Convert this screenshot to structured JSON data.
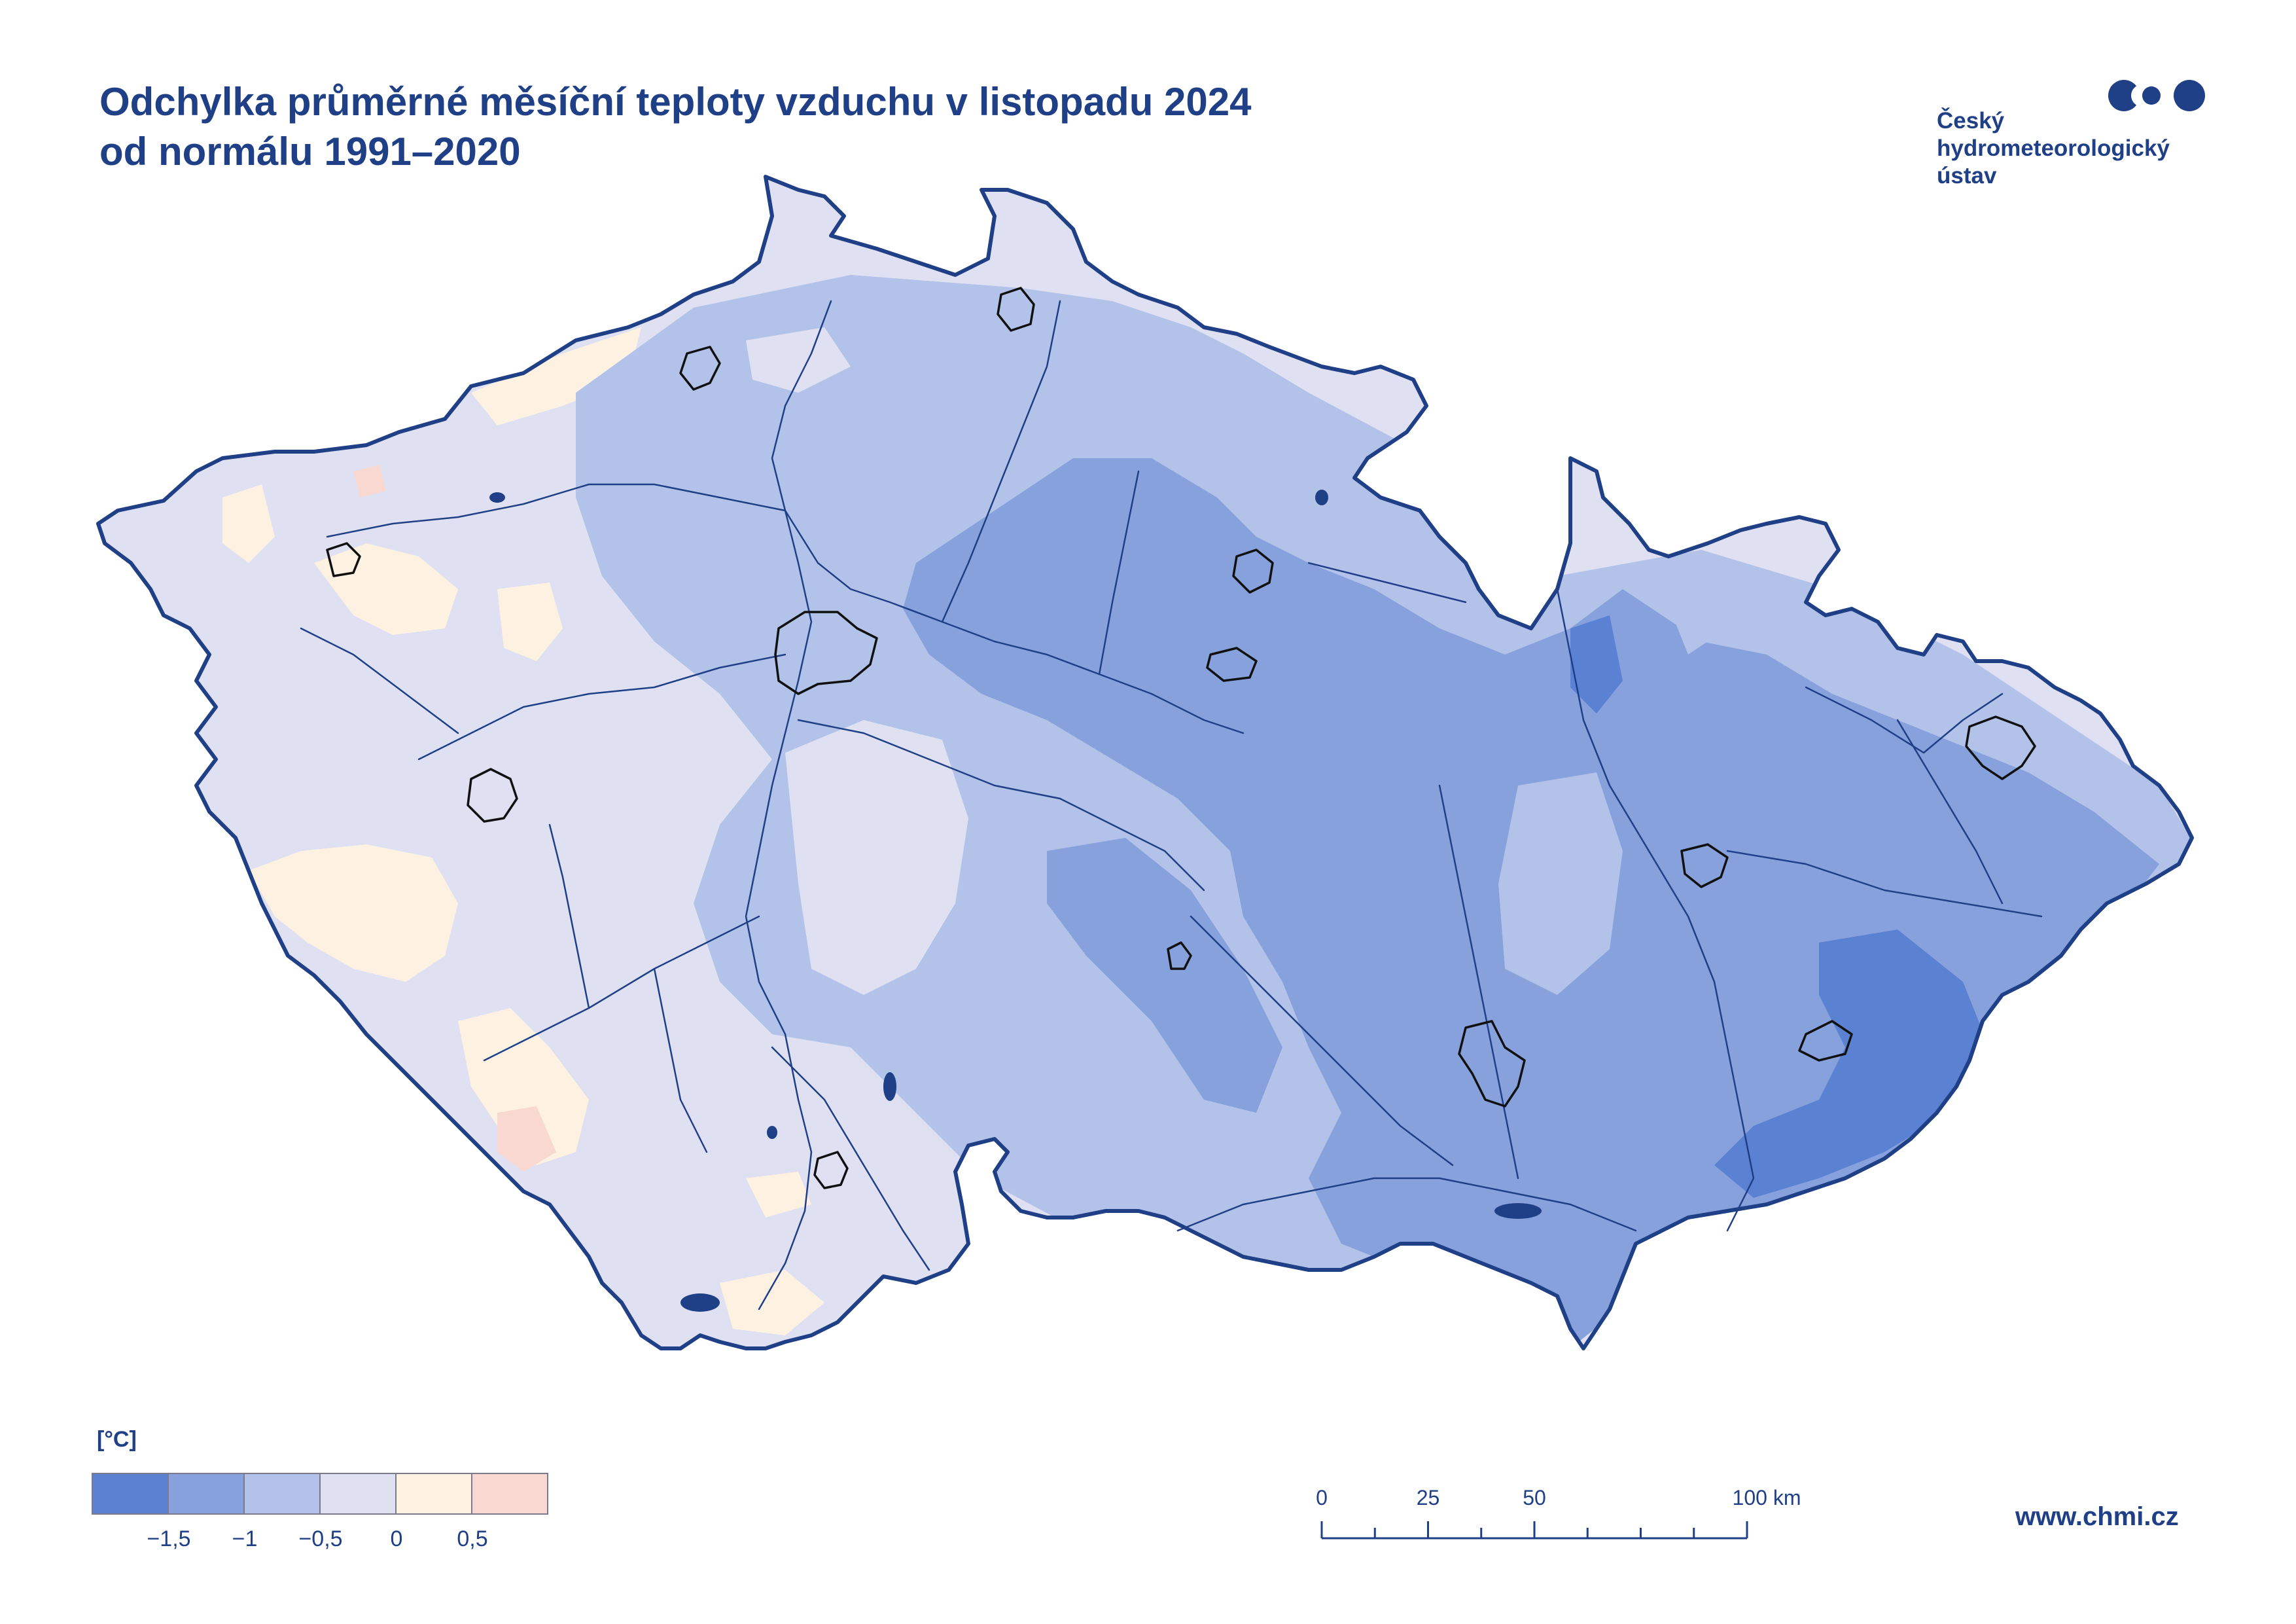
{
  "title": {
    "line1": "Odchylka průměrné měsíční teploty vzduchu v listopadu 2024",
    "line2": "od normálu 1991–2020"
  },
  "logo": {
    "line1": "Český",
    "line2": "hydrometeorologický",
    "line3": "ústav",
    "icon": "chmi-logo-dots-icon",
    "color": "#1f3f86"
  },
  "legend": {
    "unit": "[°C]",
    "colors": [
      "#5b81d3",
      "#87a1dd",
      "#b2c2e8",
      "#dfe1f2",
      "#fdf2e2",
      "#f8d8d0"
    ],
    "ticks": [
      "−1,5",
      "−1",
      "−0,5",
      "0",
      "0,5"
    ]
  },
  "scale_bar": {
    "labels": [
      "0",
      "25",
      "50",
      "100 km"
    ],
    "values_km": [
      0,
      25,
      50,
      100
    ]
  },
  "website": "www.chmi.cz",
  "colors": {
    "border": "#1f3f86",
    "rivers": "#1f3f86",
    "cities": "#111111"
  }
}
